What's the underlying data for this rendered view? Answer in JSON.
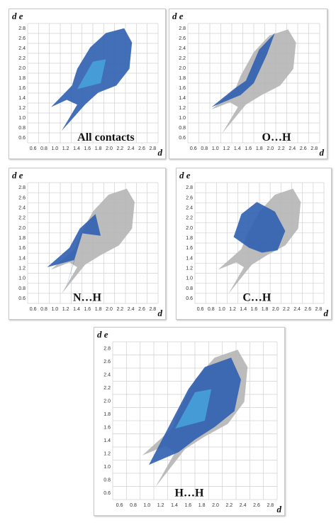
{
  "panels": [
    {
      "label": "All contacts",
      "y_axis_label": "d e",
      "x_axis_label": "d",
      "xticks": [
        "0.6",
        "0.8",
        "1.0",
        "1.2",
        "1.4",
        "1.6",
        "1.8",
        "2.0",
        "2.2",
        "2.4",
        "2.6",
        "2.8"
      ],
      "yticks": [
        "0.6",
        "0.8",
        "1.0",
        "1.2",
        "1.4",
        "1.6",
        "1.8",
        "2.0",
        "2.2",
        "2.4",
        "2.6",
        "2.8"
      ]
    },
    {
      "label": "O…H",
      "y_axis_label": "d e",
      "x_axis_label": "d",
      "xticks": [
        "0.6",
        "0.8",
        "1.0",
        "1.2",
        "1.4",
        "1.6",
        "1.8",
        "2.0",
        "2.2",
        "2.4",
        "2.6",
        "2.8"
      ],
      "yticks": [
        "0.6",
        "0.8",
        "1.0",
        "1.2",
        "1.4",
        "1.6",
        "1.8",
        "2.0",
        "2.2",
        "2.4",
        "2.6",
        "2.8"
      ]
    },
    {
      "label": "N…H",
      "y_axis_label": "d e",
      "x_axis_label": "d",
      "xticks": [
        "0.6",
        "0.8",
        "1.0",
        "1.2",
        "1.4",
        "1.6",
        "1.8",
        "2.0",
        "2.2",
        "2.4",
        "2.6",
        "2.8"
      ],
      "yticks": [
        "0.6",
        "0.8",
        "1.0",
        "1.2",
        "1.4",
        "1.6",
        "1.8",
        "2.0",
        "2.2",
        "2.4",
        "2.6",
        "2.8"
      ]
    },
    {
      "label": "C…H",
      "y_axis_label": "d e",
      "x_axis_label": "d",
      "xticks": [
        "0.6",
        "0.8",
        "1.0",
        "1.2",
        "1.4",
        "1.6",
        "1.8",
        "2.0",
        "2.2",
        "2.4",
        "2.6",
        "2.8"
      ],
      "yticks": [
        "0.6",
        "0.8",
        "1.0",
        "1.2",
        "1.4",
        "1.6",
        "1.8",
        "2.0",
        "2.2",
        "2.4",
        "2.6",
        "2.8"
      ]
    },
    {
      "label": "H…H",
      "y_axis_label": "d e",
      "x_axis_label": "d",
      "xticks": [
        "0.6",
        "0.8",
        "1.0",
        "1.2",
        "1.4",
        "1.6",
        "1.8",
        "2.0",
        "2.2",
        "2.4",
        "2.6",
        "2.8"
      ],
      "yticks": [
        "0.6",
        "0.8",
        "1.0",
        "1.2",
        "1.4",
        "1.6",
        "1.8",
        "2.0",
        "2.2",
        "2.4",
        "2.6",
        "2.8"
      ]
    }
  ]
}
